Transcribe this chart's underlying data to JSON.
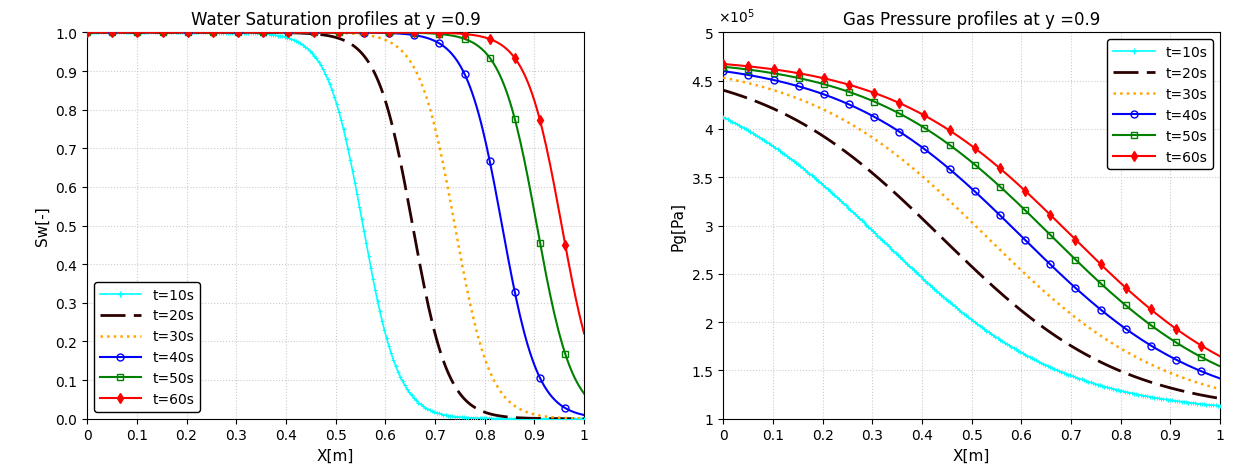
{
  "left_title": "Water Saturation profiles at y =0.9",
  "right_title": "Gas Pressure profiles at y =0.9",
  "left_xlabel": "X[m]",
  "left_ylabel": "Sw[-]",
  "right_xlabel": "X[m]",
  "right_ylabel": "Pg[Pa]",
  "xlim": [
    0,
    1
  ],
  "sw_ylim": [
    0,
    1
  ],
  "pg_ylim": [
    100000.0,
    500000.0
  ],
  "times": [
    "t=10s",
    "t=20s",
    "t=30s",
    "t=40s",
    "t=50s",
    "t=60s"
  ],
  "sw_centers": [
    0.555,
    0.655,
    0.74,
    0.835,
    0.905,
    0.955
  ],
  "sw_steepness": [
    28,
    28,
    28,
    28,
    28,
    28
  ],
  "pg_centers": [
    0.32,
    0.44,
    0.53,
    0.6,
    0.66,
    0.7
  ],
  "pg_steepness": [
    5.5,
    5.5,
    5.5,
    5.5,
    5.5,
    5.5
  ],
  "pg_max": [
    465000.0,
    470000.0,
    472000.0,
    473000.0,
    474000.0,
    475000.0
  ],
  "pg_min": [
    105000.0,
    105000.0,
    105000.0,
    105000.0,
    105000.0,
    105000.0
  ],
  "colors": [
    "#00FFFF",
    "#2B0000",
    "#FFA500",
    "#0000FF",
    "#008000",
    "#FF0000"
  ],
  "linewidths": [
    1.2,
    2.0,
    1.8,
    1.5,
    1.5,
    1.5
  ],
  "grid_color": "#CCCCCC",
  "bg_color": "#FFFFFF",
  "title_fontsize": 12,
  "label_fontsize": 11,
  "tick_fontsize": 10,
  "legend_fontsize": 10,
  "sw_n_dense": 250,
  "sw_n_marked": 80,
  "pg_n_dense": 250,
  "pg_n_marked": 80,
  "mark_every_circle": 4,
  "mark_every_square": 4,
  "mark_every_diamond": 4
}
